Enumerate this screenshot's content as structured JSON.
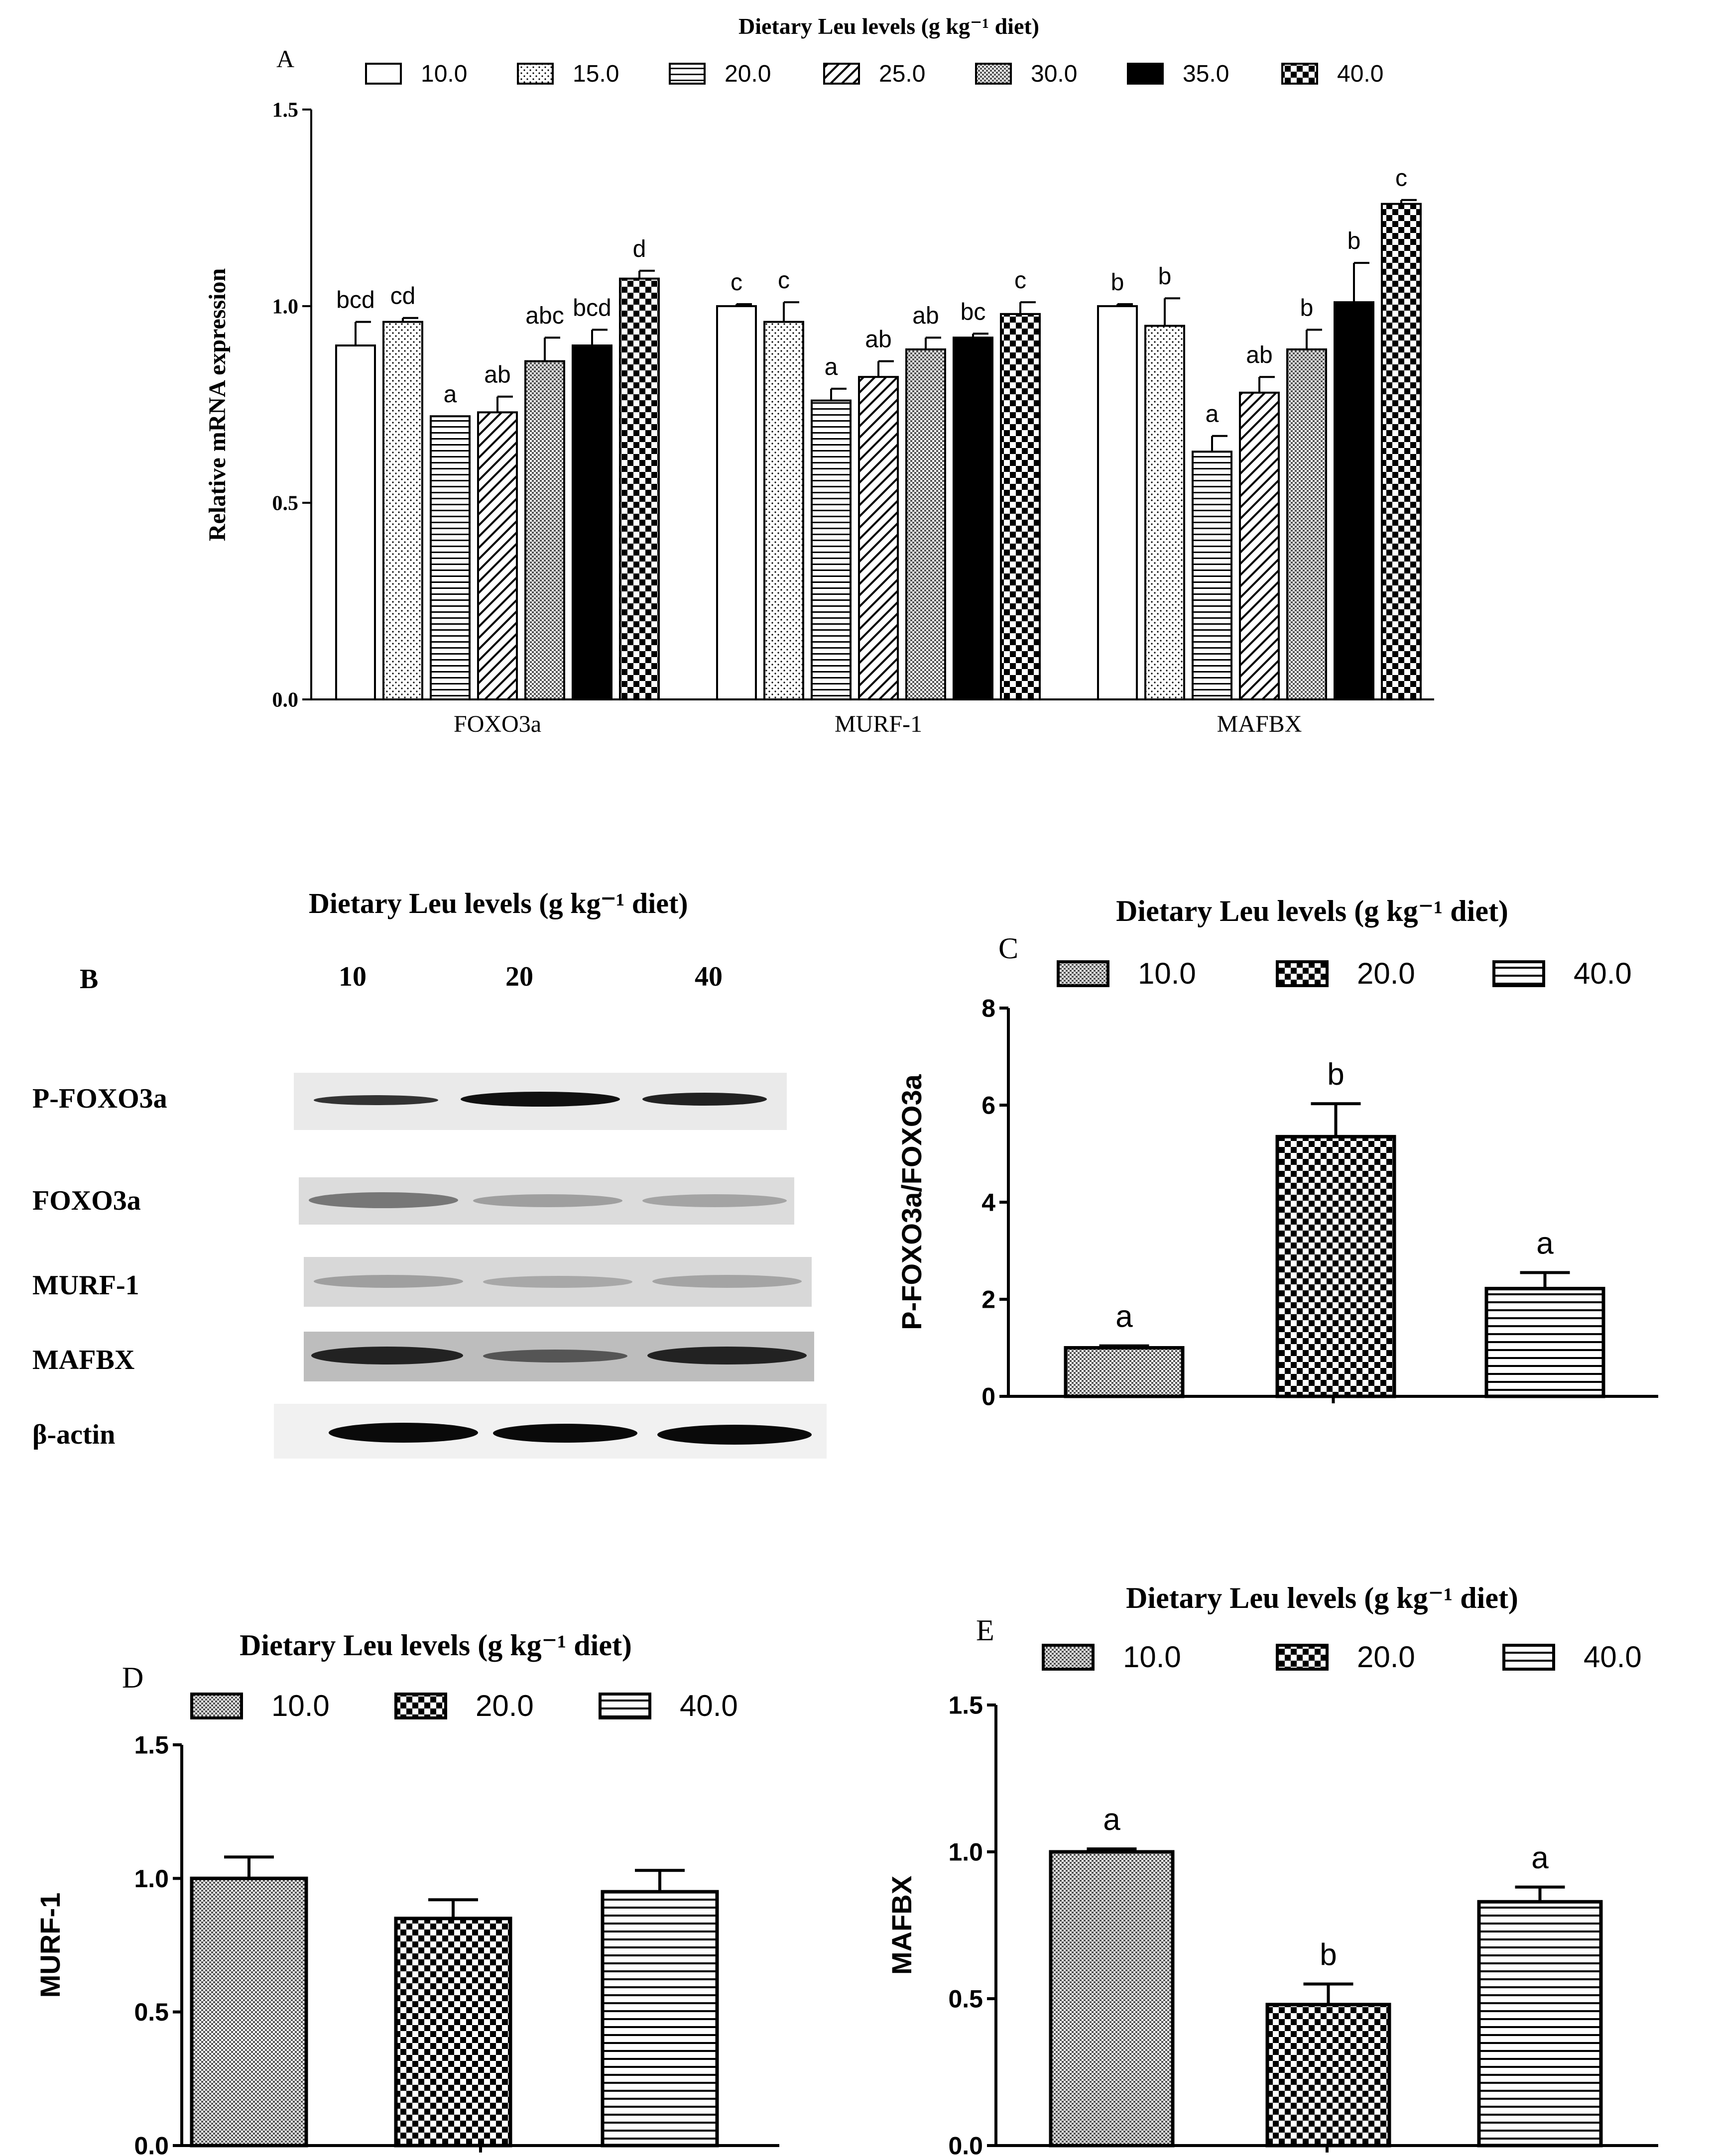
{
  "legend_title": "Dietary Leu levels (g kg⁻¹ diet)",
  "colors": {
    "ink": "#000000",
    "paper": "#ffffff",
    "blot_bg": "#e6e6e6",
    "band": "#1a1a1a"
  },
  "chart_data": [
    {
      "panel": "A",
      "type": "bar",
      "title": "Dietary Leu levels (g kg⁻¹ diet)",
      "ylabel": "Relative mRNA expression",
      "xlabel": "",
      "ylim": [
        0,
        1.5
      ],
      "yticks": [
        "0.0",
        "0.5",
        "1.0",
        "1.5"
      ],
      "categories": [
        "FOXO3a",
        "MURF-1",
        "MAFBX"
      ],
      "legend": [
        "10.0",
        "15.0",
        "20.0",
        "25.0",
        "30.0",
        "35.0",
        "40.0"
      ],
      "series": [
        {
          "name": "10.0",
          "values": [
            0.9,
            1.0,
            1.0
          ],
          "errors": [
            0.06,
            0.005,
            0.005
          ],
          "letters": [
            "bcd",
            "c",
            "b"
          ]
        },
        {
          "name": "15.0",
          "values": [
            0.96,
            0.96,
            0.95
          ],
          "errors": [
            0.01,
            0.05,
            0.07
          ],
          "letters": [
            "cd",
            "c",
            "b"
          ]
        },
        {
          "name": "20.0",
          "values": [
            0.72,
            0.76,
            0.63
          ],
          "errors": [
            0.0,
            0.03,
            0.04
          ],
          "letters": [
            "a",
            "a",
            "a"
          ]
        },
        {
          "name": "25.0",
          "values": [
            0.73,
            0.82,
            0.78
          ],
          "errors": [
            0.04,
            0.04,
            0.04
          ],
          "letters": [
            "ab",
            "ab",
            "ab"
          ]
        },
        {
          "name": "30.0",
          "values": [
            0.86,
            0.89,
            0.89
          ],
          "errors": [
            0.06,
            0.03,
            0.05
          ],
          "letters": [
            "abc",
            "ab",
            "b"
          ]
        },
        {
          "name": "35.0",
          "values": [
            0.9,
            0.92,
            1.01
          ],
          "errors": [
            0.04,
            0.01,
            0.1
          ],
          "letters": [
            "bcd",
            "bc",
            "b"
          ]
        },
        {
          "name": "40.0",
          "values": [
            1.07,
            0.98,
            1.26
          ],
          "errors": [
            0.02,
            0.03,
            0.01
          ],
          "letters": [
            "d",
            "c",
            "c"
          ]
        }
      ]
    },
    {
      "panel": "C",
      "type": "bar",
      "title": "Dietary Leu levels (g kg⁻¹ diet)",
      "ylabel": "P-FOXO3a/FOXO3a",
      "ylim": [
        0,
        8
      ],
      "yticks": [
        "0",
        "2",
        "4",
        "6",
        "8"
      ],
      "legend": [
        "10.0",
        "20.0",
        "40.0"
      ],
      "values": [
        1.0,
        5.35,
        2.22
      ],
      "errors": [
        0.04,
        0.68,
        0.33
      ],
      "letters": [
        "a",
        "b",
        "a"
      ]
    },
    {
      "panel": "D",
      "type": "bar",
      "title": "Dietary Leu levels (g kg⁻¹ diet)",
      "ylabel": "MURF-1",
      "ylim": [
        0,
        1.5
      ],
      "yticks": [
        "0.0",
        "0.5",
        "1.0",
        "1.5"
      ],
      "legend": [
        "10.0",
        "20.0",
        "40.0"
      ],
      "values": [
        1.0,
        0.85,
        0.95
      ],
      "errors": [
        0.08,
        0.07,
        0.08
      ],
      "letters": [
        "",
        "",
        ""
      ]
    },
    {
      "panel": "E",
      "type": "bar",
      "title": "Dietary Leu levels (g kg⁻¹ diet)",
      "ylabel": "MAFBX",
      "ylim": [
        0,
        1.5
      ],
      "yticks": [
        "0.0",
        "0.5",
        "1.0",
        "1.5"
      ],
      "legend": [
        "10.0",
        "20.0",
        "40.0"
      ],
      "values": [
        1.0,
        0.48,
        0.83
      ],
      "errors": [
        0.01,
        0.07,
        0.05
      ],
      "letters": [
        "a",
        "b",
        "a"
      ]
    }
  ],
  "western_blot": {
    "panel": "B",
    "title": "Dietary Leu levels (g kg⁻¹ diet)",
    "lanes": [
      "10",
      "20",
      "40"
    ],
    "proteins": [
      "P-FOXO3a",
      "FOXO3a",
      "MURF-1",
      "MAFBX",
      "β-actin"
    ]
  }
}
